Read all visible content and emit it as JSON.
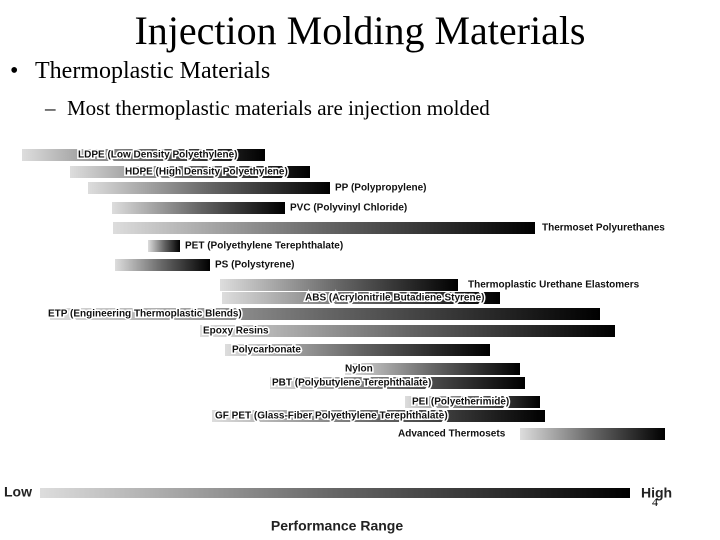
{
  "slide": {
    "title": "Injection Molding Materials",
    "bullet": "Thermoplastic Materials",
    "sub_bullet": "Most thermoplastic materials are injection molded",
    "figure": {
      "materials": [
        "LDPE (Low Density Polyethylene)",
        "HDPE (High Density Polyethylene)",
        "PP (Polypropylene)",
        "PVC (Polyvinyl Chloride)",
        "Thermoset Polyurethanes",
        "PET (Polyethylene Terephthalate)",
        "PS (Polystyrene)",
        "Thermoplastic Urethane Elastomers",
        "ABS (Acrylonitrile Butadiene Styrene)",
        "ETP (Engineering Thermoplastic Blends)",
        "Epoxy Resins",
        "Polycarbonate",
        "Nylon",
        "PBT (Polybutylene Terephthalate)",
        "PEI (Polyetherimide)",
        "GF PET (Glass-Fiber Polyethylene Terephthalate)",
        "Advanced Thermosets"
      ],
      "axis_low": "Low",
      "axis_high": "High",
      "axis_title": "Performance Range"
    },
    "page_number": "4"
  }
}
